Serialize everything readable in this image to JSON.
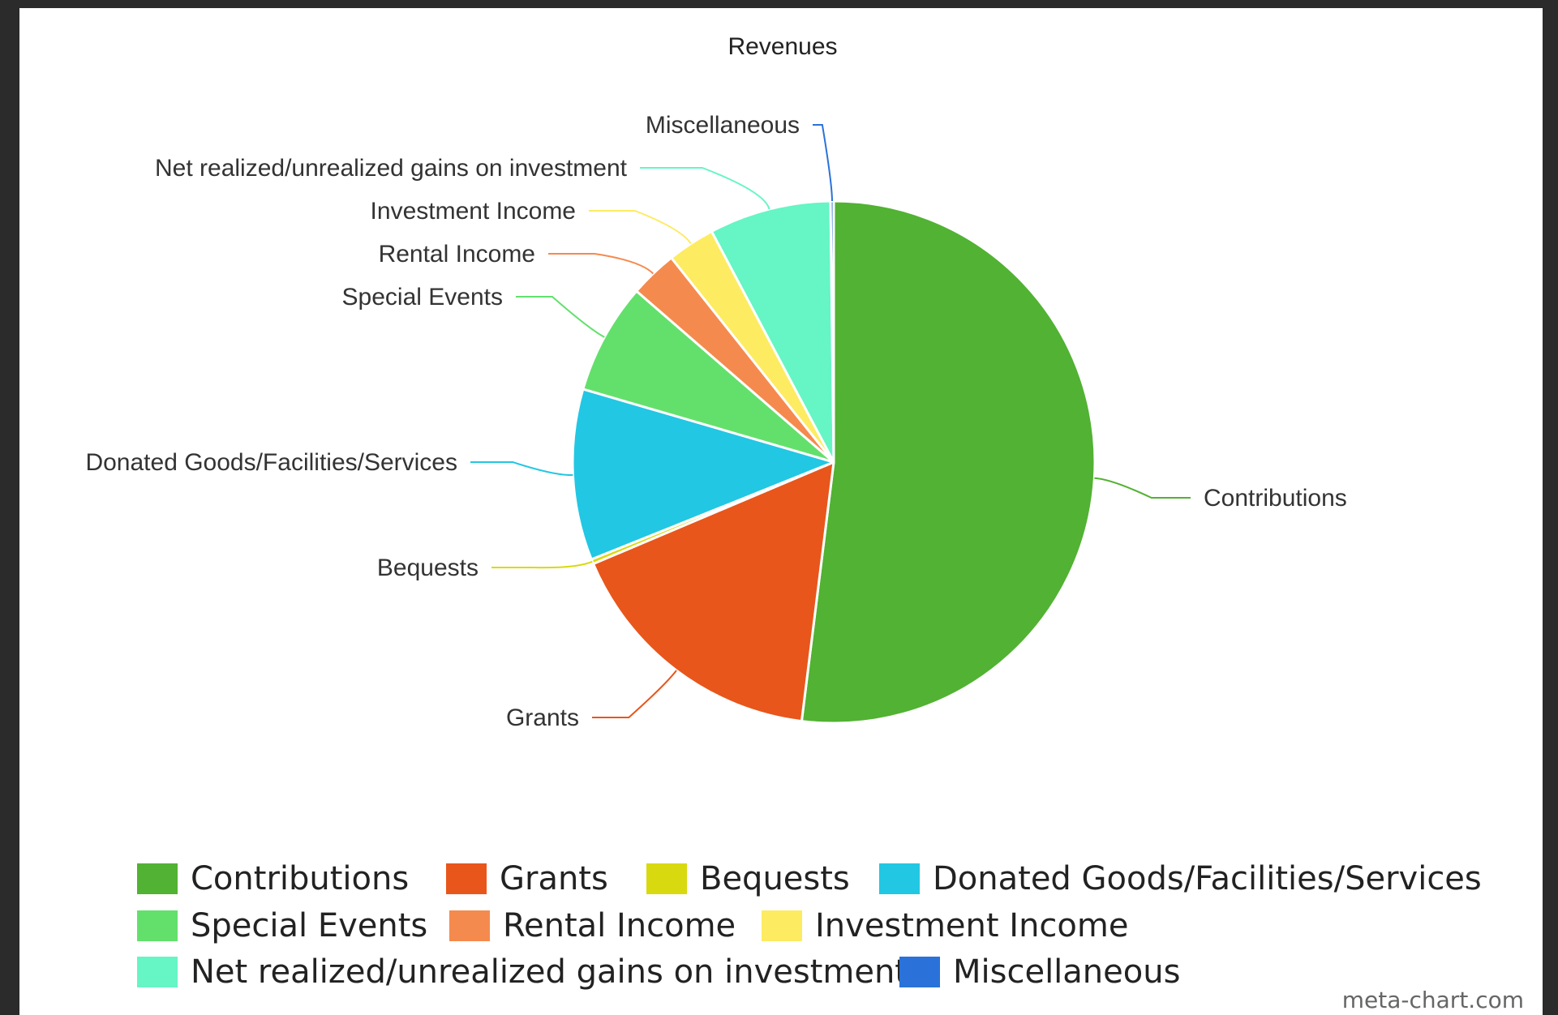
{
  "chart_data": {
    "type": "pie",
    "title": "Revenues",
    "slices": [
      {
        "label": "Contributions",
        "value": 53.0,
        "color": "#52b233"
      },
      {
        "label": "Grants",
        "value": 17.0,
        "color": "#e8561b"
      },
      {
        "label": "Bequests",
        "value": 0.3,
        "color": "#d9d90f"
      },
      {
        "label": "Donated Goods/Facilities/Services",
        "value": 10.8,
        "color": "#22c7e3"
      },
      {
        "label": "Special Events",
        "value": 7.0,
        "color": "#63e06c"
      },
      {
        "label": "Rental Income",
        "value": 3.0,
        "color": "#f58a4e"
      },
      {
        "label": "Investment Income",
        "value": 3.0,
        "color": "#fdeb62"
      },
      {
        "label": "Net realized/unrealized gains on investment",
        "value": 7.7,
        "color": "#66f5c5"
      },
      {
        "label": "Miscellaneous",
        "value": 0.2,
        "color": "#2a72d9"
      }
    ],
    "legend_position": "bottom"
  },
  "credit": "meta-chart.com"
}
